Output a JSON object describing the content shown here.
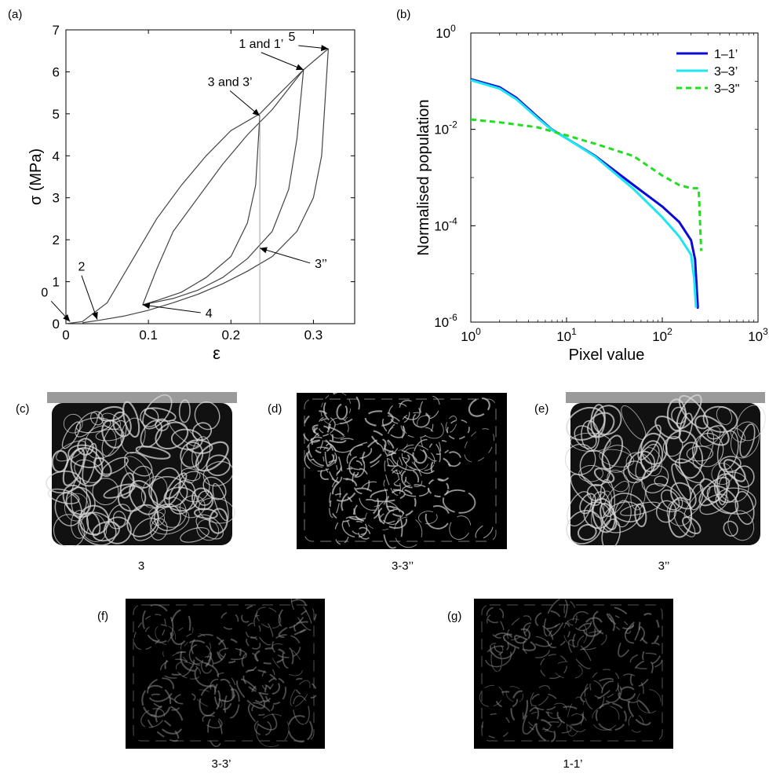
{
  "panels": {
    "a": "(a)",
    "b": "(b)",
    "c": "(c)",
    "d": "(d)",
    "e": "(e)",
    "f": "(f)",
    "g": "(g)"
  },
  "captions": {
    "c": "3",
    "d": "3-3’’",
    "e": "3’’",
    "f": "3-3’",
    "g": "1-1’"
  },
  "chart_data": [
    {
      "type": "line",
      "panel": "(a)",
      "title": "",
      "xlabel": "ε",
      "ylabel": "σ (MPa)",
      "xlim": [
        0,
        0.35
      ],
      "ylim": [
        0,
        7
      ],
      "xticks": [
        "0",
        "0.1",
        "0.2",
        "0.3"
      ],
      "yticks": [
        "0",
        "1",
        "2",
        "3",
        "4",
        "5",
        "6",
        "7"
      ],
      "grid": false,
      "annotations": [
        "0",
        "2",
        "4",
        "3’’",
        "3 and 3’",
        "1 and 1’",
        "5"
      ],
      "annotation_points": [
        {
          "label": "0",
          "x": 0.005,
          "y": 0.05
        },
        {
          "label": "2",
          "x": 0.038,
          "y": 0.1
        },
        {
          "label": "4",
          "x": 0.093,
          "y": 0.45
        },
        {
          "label": "3’’",
          "x": 0.235,
          "y": 1.8
        },
        {
          "label": "3 and 3’",
          "x": 0.235,
          "y": 4.95
        },
        {
          "label": "1 and 1’",
          "x": 0.288,
          "y": 6.05
        },
        {
          "label": "5",
          "x": 0.318,
          "y": 6.55
        }
      ],
      "series": [
        {
          "name": "",
          "x": [
            0.0,
            0.02,
            0.05,
            0.08,
            0.11,
            0.14,
            0.17,
            0.2,
            0.235,
            0.26,
            0.288,
            0.318
          ],
          "y": [
            0.0,
            0.05,
            0.5,
            1.5,
            2.5,
            3.3,
            4.0,
            4.6,
            5.0,
            5.5,
            6.05,
            6.55
          ]
        },
        {
          "name": "",
          "x": [
            0.318,
            0.31,
            0.3,
            0.28,
            0.25,
            0.22,
            0.19,
            0.16,
            0.13,
            0.1,
            0.07,
            0.04,
            0.02
          ],
          "y": [
            6.55,
            4.0,
            3.0,
            2.2,
            1.6,
            1.25,
            0.95,
            0.7,
            0.5,
            0.32,
            0.18,
            0.08,
            0.02
          ]
        },
        {
          "name": "",
          "x": [
            0.235,
            0.23,
            0.22,
            0.2,
            0.17,
            0.14,
            0.11,
            0.093
          ],
          "y": [
            4.95,
            3.3,
            2.4,
            1.6,
            1.1,
            0.75,
            0.55,
            0.45
          ]
        },
        {
          "name": "",
          "x": [
            0.093,
            0.11,
            0.13,
            0.16,
            0.19,
            0.22,
            0.25,
            0.27,
            0.288
          ],
          "y": [
            0.45,
            1.3,
            2.2,
            3.0,
            3.8,
            4.5,
            5.1,
            5.6,
            6.05
          ]
        },
        {
          "name": "",
          "x": [
            0.288,
            0.28,
            0.27,
            0.25,
            0.22,
            0.19,
            0.16,
            0.13,
            0.1,
            0.093
          ],
          "y": [
            6.05,
            4.4,
            3.2,
            2.2,
            1.55,
            1.1,
            0.8,
            0.6,
            0.48,
            0.45
          ]
        },
        {
          "name": "",
          "x": [
            0.235,
            0.235
          ],
          "y": [
            0.0,
            4.95
          ]
        }
      ]
    },
    {
      "type": "line",
      "panel": "(b)",
      "title": "",
      "xlabel": "Pixel value",
      "ylabel": "Normalised population",
      "xscale": "log",
      "yscale": "log",
      "xlim": [
        1,
        1000
      ],
      "ylim": [
        1e-06,
        1
      ],
      "xticks": [
        {
          "base": "10",
          "exp": "0"
        },
        {
          "base": "10",
          "exp": "1"
        },
        {
          "base": "10",
          "exp": "2"
        },
        {
          "base": "10",
          "exp": "3"
        }
      ],
      "yticks": [
        {
          "base": "10",
          "exp": "0"
        },
        {
          "base": "10",
          "exp": "-2"
        },
        {
          "base": "10",
          "exp": "-4"
        },
        {
          "base": "10",
          "exp": "-6"
        }
      ],
      "legend": "top-right",
      "grid": false,
      "series": [
        {
          "name": "1–1’",
          "color": "#0b0bd9",
          "style": "solid",
          "x": [
            1,
            2,
            3,
            5,
            7,
            10,
            20,
            50,
            100,
            150,
            200,
            220,
            235,
            240
          ],
          "y": [
            0.11,
            0.075,
            0.045,
            0.018,
            0.01,
            0.0065,
            0.0028,
            0.0007,
            0.00025,
            0.00012,
            5e-05,
            2e-05,
            2e-06,
            2e-06
          ]
        },
        {
          "name": "3–3’",
          "color": "#1ee6f0",
          "style": "solid",
          "x": [
            1,
            2,
            3,
            5,
            7,
            10,
            20,
            50,
            100,
            150,
            200,
            215,
            225
          ],
          "y": [
            0.105,
            0.07,
            0.042,
            0.017,
            0.0098,
            0.0065,
            0.0027,
            0.00058,
            0.00015,
            6e-05,
            2.5e-05,
            8e-06,
            2e-06
          ]
        },
        {
          "name": "3–3\"",
          "color": "#22dd22",
          "style": "dashed",
          "x": [
            1,
            2,
            5,
            10,
            20,
            50,
            100,
            150,
            200,
            240,
            255
          ],
          "y": [
            0.016,
            0.014,
            0.011,
            0.0075,
            0.005,
            0.0028,
            0.0011,
            0.0007,
            0.0006,
            0.0006,
            3e-05
          ]
        }
      ]
    }
  ]
}
